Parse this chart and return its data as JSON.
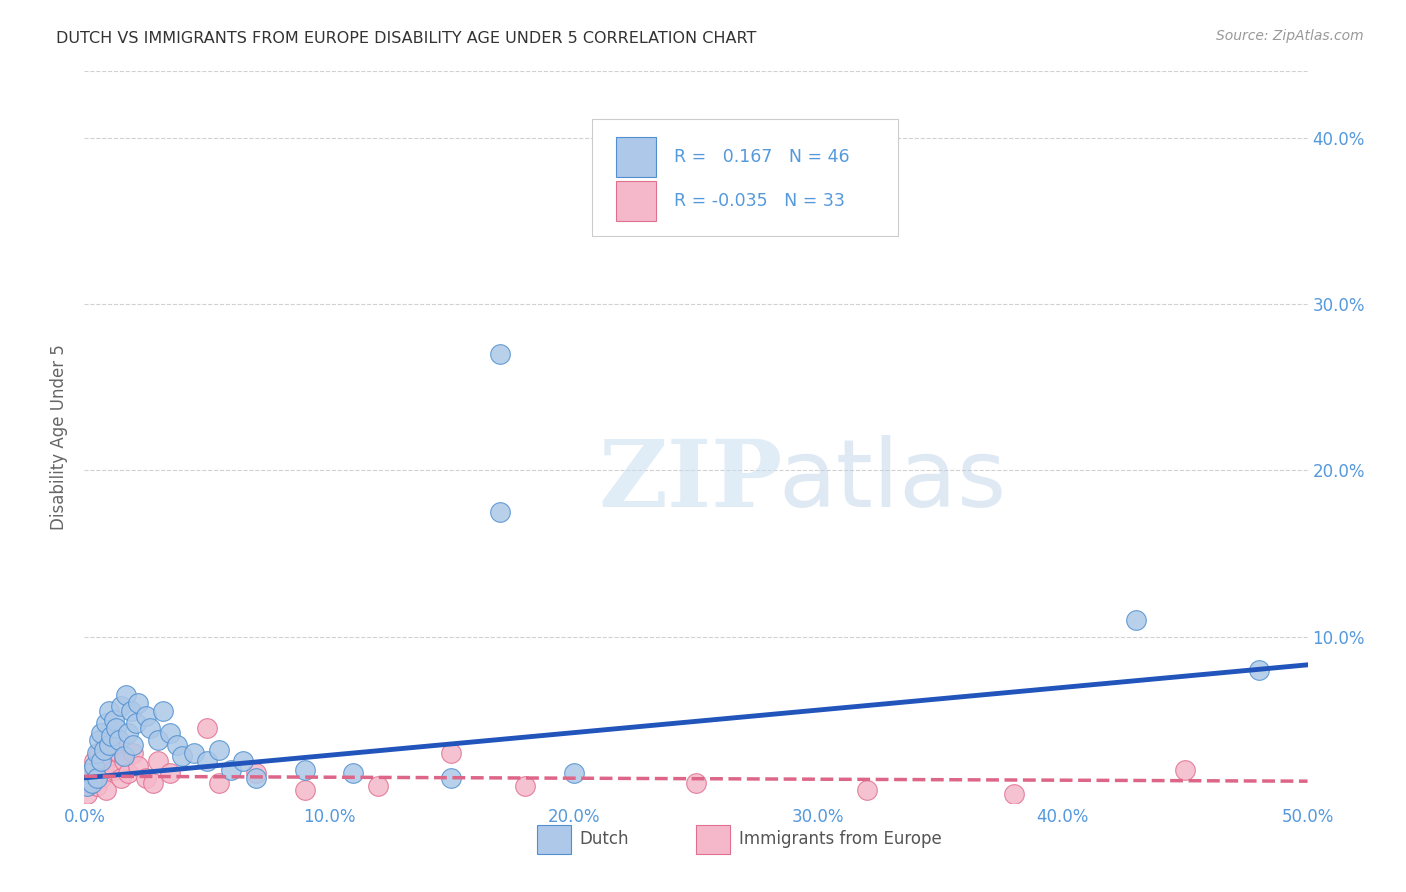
{
  "title": "DUTCH VS IMMIGRANTS FROM EUROPE DISABILITY AGE UNDER 5 CORRELATION CHART",
  "source": "Source: ZipAtlas.com",
  "ylabel": "Disability Age Under 5",
  "xlim": [
    0.0,
    0.5
  ],
  "ylim": [
    0.0,
    0.44
  ],
  "xticks": [
    0.0,
    0.1,
    0.2,
    0.3,
    0.4,
    0.5
  ],
  "yticks_right": [
    0.1,
    0.2,
    0.3,
    0.4
  ],
  "dutch_R": 0.167,
  "dutch_N": 46,
  "imm_R": -0.035,
  "imm_N": 33,
  "dutch_color": "#adc8e8",
  "dutch_edge_color": "#5090d0",
  "dutch_line_color": "#2255bb",
  "imm_color": "#f4b8ca",
  "imm_edge_color": "#e07090",
  "imm_line_color": "#dd6688",
  "dutch_x": [
    0.001,
    0.002,
    0.003,
    0.004,
    0.005,
    0.005,
    0.006,
    0.007,
    0.007,
    0.008,
    0.009,
    0.01,
    0.01,
    0.011,
    0.012,
    0.013,
    0.014,
    0.015,
    0.016,
    0.017,
    0.018,
    0.019,
    0.02,
    0.021,
    0.022,
    0.025,
    0.027,
    0.03,
    0.032,
    0.035,
    0.038,
    0.04,
    0.045,
    0.05,
    0.055,
    0.06,
    0.065,
    0.07,
    0.09,
    0.11,
    0.15,
    0.17,
    0.17,
    0.2,
    0.43,
    0.48
  ],
  "dutch_y": [
    0.01,
    0.018,
    0.012,
    0.022,
    0.03,
    0.015,
    0.038,
    0.025,
    0.042,
    0.032,
    0.048,
    0.035,
    0.055,
    0.04,
    0.05,
    0.045,
    0.038,
    0.058,
    0.028,
    0.065,
    0.042,
    0.055,
    0.035,
    0.048,
    0.06,
    0.052,
    0.045,
    0.038,
    0.055,
    0.042,
    0.035,
    0.028,
    0.03,
    0.025,
    0.032,
    0.02,
    0.025,
    0.015,
    0.02,
    0.018,
    0.015,
    0.27,
    0.175,
    0.018,
    0.11,
    0.08
  ],
  "imm_x": [
    0.001,
    0.002,
    0.003,
    0.004,
    0.005,
    0.006,
    0.007,
    0.008,
    0.009,
    0.01,
    0.011,
    0.012,
    0.014,
    0.015,
    0.016,
    0.018,
    0.02,
    0.022,
    0.025,
    0.028,
    0.03,
    0.035,
    0.05,
    0.055,
    0.07,
    0.09,
    0.12,
    0.15,
    0.18,
    0.25,
    0.32,
    0.38,
    0.45
  ],
  "imm_y": [
    0.005,
    0.012,
    0.018,
    0.025,
    0.01,
    0.03,
    0.015,
    0.022,
    0.008,
    0.028,
    0.035,
    0.02,
    0.03,
    0.015,
    0.025,
    0.018,
    0.03,
    0.022,
    0.015,
    0.012,
    0.025,
    0.018,
    0.045,
    0.012,
    0.018,
    0.008,
    0.01,
    0.03,
    0.01,
    0.012,
    0.008,
    0.005,
    0.02
  ],
  "dutch_line_y0": 0.015,
  "dutch_line_y1": 0.083,
  "imm_line_y0": 0.016,
  "imm_line_y1": 0.013,
  "watermark_zip": "ZIP",
  "watermark_atlas": "atlas",
  "background_color": "#ffffff",
  "grid_color": "#cccccc",
  "tick_color": "#5599dd",
  "title_color": "#333333",
  "source_color": "#999999",
  "ylabel_color": "#666666"
}
